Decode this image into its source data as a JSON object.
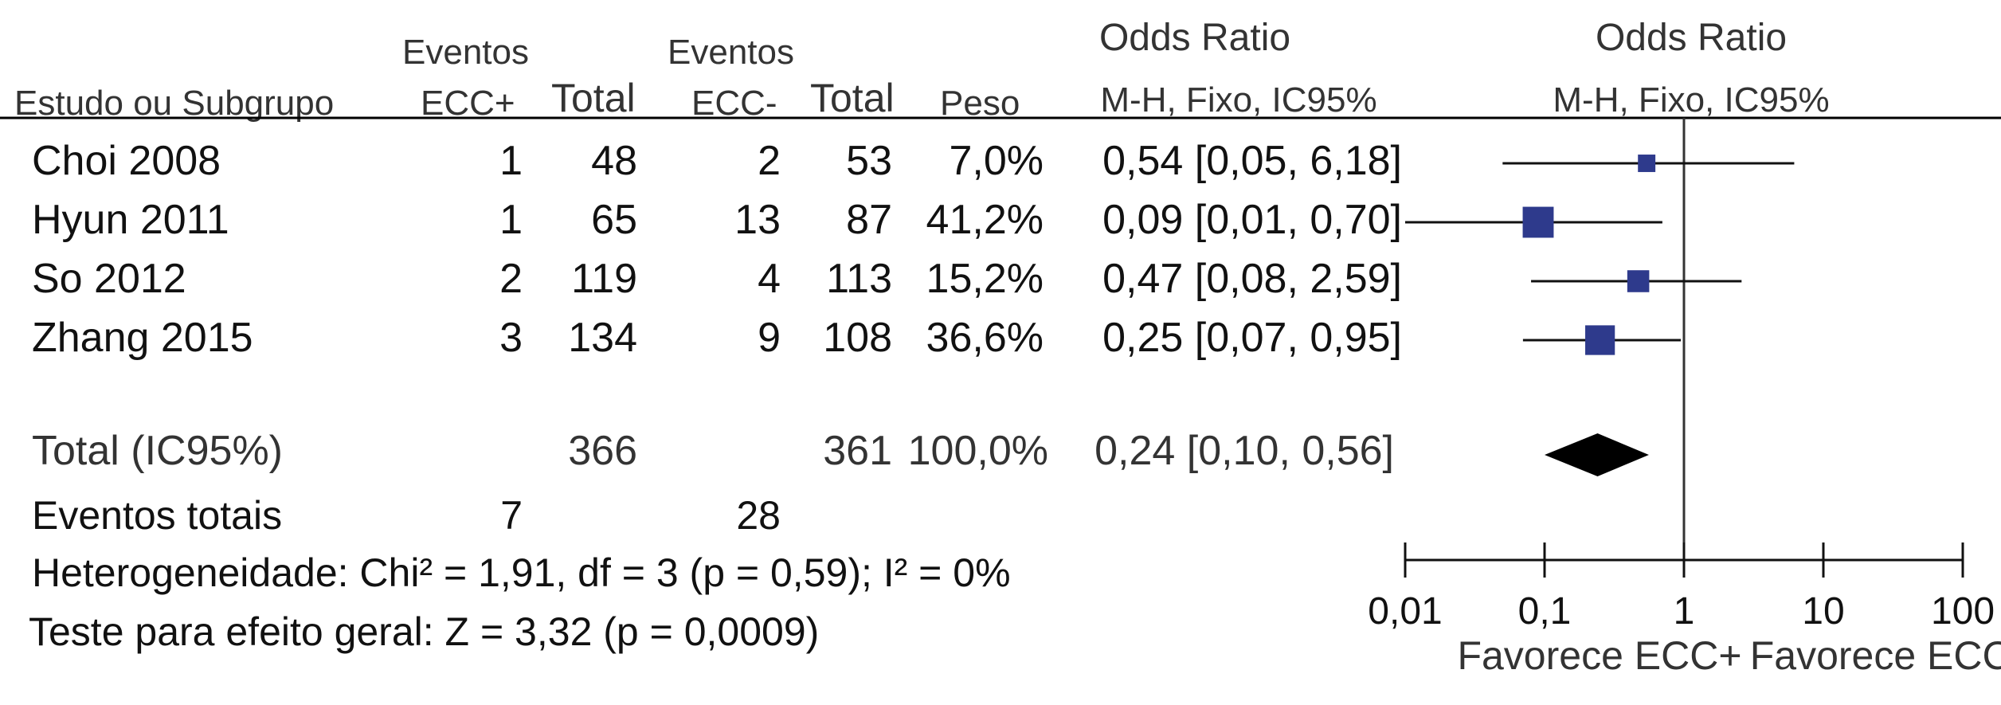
{
  "headers": {
    "study": "Estudo ou Subgrupo",
    "events_pos_top": "Eventos",
    "events_pos": "ECC+",
    "total_pos": "Total",
    "events_neg_top": "Eventos",
    "events_neg": "ECC-",
    "total_neg": "Total",
    "weight": "Peso",
    "or_title": "Odds Ratio",
    "or_method": "M-H, Fixo, IC95%",
    "plot_title": "Odds Ratio",
    "plot_method": "M-H, Fixo, IC95%"
  },
  "studies": [
    {
      "name": "Choi 2008",
      "events_pos": "1",
      "total_pos": "48",
      "events_neg": "2",
      "total_neg": "53",
      "weight": "7,0%",
      "ci_text": "0,54 [0,05, 6,18]"
    },
    {
      "name": "Hyun 2011",
      "events_pos": "1",
      "total_pos": "65",
      "events_neg": "13",
      "total_neg": "87",
      "weight": "41,2%",
      "ci_text": "0,09 [0,01, 0,70]"
    },
    {
      "name": "So 2012",
      "events_pos": "2",
      "total_pos": "119",
      "events_neg": "4",
      "total_neg": "113",
      "weight": "15,2%",
      "ci_text": "0,47 [0,08, 2,59]"
    },
    {
      "name": "Zhang 2015",
      "events_pos": "3",
      "total_pos": "134",
      "events_neg": "9",
      "total_neg": "108",
      "weight": "36,6%",
      "ci_text": "0,25 [0,07, 0,95]"
    }
  ],
  "total": {
    "label": "Total (IC95%)",
    "total_pos": "366",
    "total_neg": "361",
    "weight": "100,0%",
    "ci_text": "0,24 [0,10, 0,56]"
  },
  "events_total": {
    "label": "Eventos totais",
    "events_pos": "7",
    "events_neg": "28"
  },
  "heterogeneity": "Heterogeneidade: Chi² = 1,91, df = 3 (p = 0,59); I² = 0%",
  "overall_effect": "Teste para efeito geral: Z = 3,32 (p = 0,0009)",
  "axis": {
    "ticks": [
      "0,01",
      "0,1",
      "1",
      "10",
      "100"
    ],
    "favours_left": "Favorece ECC+",
    "favours_right": "Favorece ECC-"
  },
  "chart_data": {
    "type": "forest",
    "scale": "log",
    "xlim": [
      0.01,
      100
    ],
    "tick_values": [
      0.01,
      0.1,
      1,
      10,
      100
    ],
    "reference_line": 1,
    "marker_color": "#2e3a8c",
    "summary_color": "#000000",
    "studies": [
      {
        "or": 0.54,
        "lower": 0.05,
        "upper": 6.18,
        "weight": 7.0
      },
      {
        "or": 0.09,
        "lower": 0.01,
        "upper": 0.7,
        "weight": 41.2
      },
      {
        "or": 0.47,
        "lower": 0.08,
        "upper": 2.59,
        "weight": 15.2
      },
      {
        "or": 0.25,
        "lower": 0.07,
        "upper": 0.95,
        "weight": 36.6
      }
    ],
    "summary": {
      "or": 0.24,
      "lower": 0.1,
      "upper": 0.56
    }
  }
}
